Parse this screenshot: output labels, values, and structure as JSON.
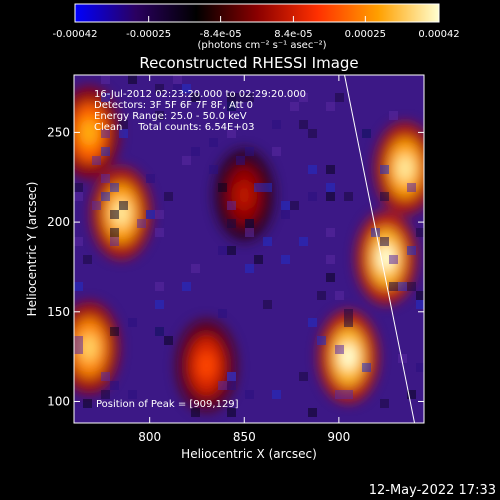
{
  "colorbar": {
    "tick_labels": [
      "-0.00042",
      "-0.00025",
      "-8.4e-05",
      "8.4e-05",
      "0.00025",
      "0.00042"
    ],
    "tick_values": [
      -0.00042,
      -0.00025,
      -8.4e-05,
      8.4e-05,
      0.00025,
      0.00042
    ],
    "range": [
      -0.00042,
      0.00042
    ],
    "units_line": "(photons cm⁻² s⁻¹ asec⁻²)",
    "colors": [
      "#0000ff",
      "#2a0060",
      "#000000",
      "#8a0000",
      "#ff3000",
      "#ffa000",
      "#ffffd0"
    ]
  },
  "chart_data": {
    "type": "heatmap",
    "title": "Reconstructed RHESSI Image",
    "xlabel": "Heliocentric X (arcsec)",
    "ylabel": "Heliocentric Y (arcsec)",
    "xlim": [
      760,
      945
    ],
    "ylim": [
      88,
      282
    ],
    "x_ticks": [
      800,
      850,
      900
    ],
    "y_ticks": [
      100,
      150,
      200,
      250
    ],
    "x_tick_labels": [
      "800",
      "850",
      "900"
    ],
    "y_tick_labels": [
      "100",
      "150",
      "200",
      "250"
    ],
    "info_lines": [
      "16-Jul-2012 02:23:20.000 to 02:29:20.000",
      "Detectors: 3F 5F 6F 7F 8F, Att 0",
      "Energy Range: 25.0 - 50.0 keV",
      "Clean     Total counts: 6.54E+03"
    ],
    "peak_label": "Position of Peak = [909,129]",
    "peak_position": [
      909,
      129
    ],
    "bright_regions": [
      {
        "x": 785,
        "y": 205,
        "level": 0.0004
      },
      {
        "x": 768,
        "y": 250,
        "level": 0.00035
      },
      {
        "x": 768,
        "y": 130,
        "level": 0.00038
      },
      {
        "x": 830,
        "y": 120,
        "level": 0.00028
      },
      {
        "x": 850,
        "y": 215,
        "level": 0.00022
      },
      {
        "x": 925,
        "y": 180,
        "level": 0.00042
      },
      {
        "x": 935,
        "y": 230,
        "level": 0.0004
      },
      {
        "x": 905,
        "y": 125,
        "level": 0.00042
      }
    ],
    "limb_line": [
      [
        903,
        282
      ],
      [
        940,
        88
      ]
    ]
  },
  "timestamp": "12-May-2022 17:33"
}
